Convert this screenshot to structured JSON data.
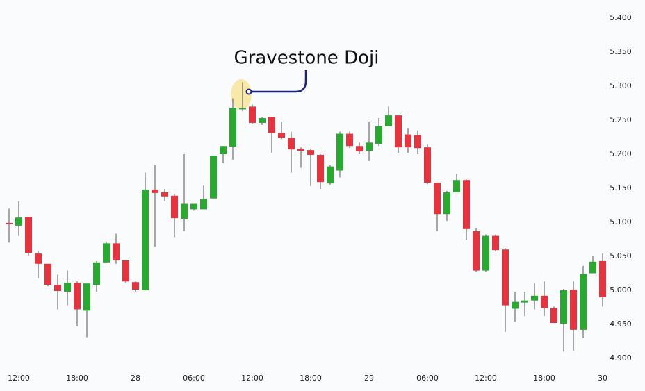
{
  "chart_data": {
    "type": "candlestick",
    "annotation": "Gravestone Doji",
    "categories": [
      null,
      "12:00",
      null,
      null,
      null,
      null,
      null,
      "18:00",
      null,
      null,
      null,
      null,
      null,
      "28",
      null,
      null,
      null,
      null,
      null,
      "06:00",
      null,
      null,
      null,
      null,
      null,
      "12:00",
      null,
      null,
      null,
      null,
      null,
      "18:00",
      null,
      null,
      null,
      null,
      null,
      "29",
      null,
      null,
      null,
      null,
      null,
      "06:00",
      null,
      null,
      null,
      null,
      null,
      "12:00",
      null,
      null,
      null,
      null,
      null,
      "18:00",
      null,
      null,
      null,
      null,
      null,
      "30"
    ],
    "open": [
      5.099,
      5.095,
      5.108,
      5.054,
      5.039,
      5.008,
      4.998,
      5.011,
      4.97,
      5.008,
      5.041,
      5.069,
      5.044,
      5.012,
      5.0,
      5.148,
      5.144,
      5.139,
      5.105,
      5.119,
      5.119,
      5.135,
      5.2,
      5.211,
      5.266,
      5.27,
      5.246,
      5.255,
      5.231,
      5.224,
      5.208,
      5.206,
      5.199,
      5.157,
      5.176,
      5.23,
      5.212,
      5.205,
      5.215,
      5.241,
      5.257,
      5.229,
      5.228,
      5.21,
      5.158,
      5.112,
      5.144,
      5.162,
      5.087,
      5.029,
      5.08,
      5.06,
      4.973,
      4.982,
      4.985,
      4.992,
      4.974,
      4.951,
      5.001,
      4.942,
      5.025,
      5.043
    ],
    "high": [
      5.12,
      5.131,
      5.108,
      5.057,
      5.039,
      5.023,
      5.029,
      5.013,
      5.01,
      5.043,
      5.071,
      5.083,
      5.044,
      5.013,
      5.173,
      5.184,
      5.149,
      5.141,
      5.2,
      5.127,
      5.154,
      5.198,
      5.212,
      5.282,
      5.306,
      5.273,
      5.255,
      5.255,
      5.248,
      5.233,
      5.21,
      5.208,
      5.2,
      5.184,
      5.233,
      5.233,
      5.217,
      5.248,
      5.253,
      5.27,
      5.257,
      5.238,
      5.235,
      5.214,
      5.158,
      5.146,
      5.171,
      5.163,
      5.092,
      5.082,
      5.082,
      5.062,
      4.998,
      4.998,
      5.01,
      5.013,
      4.976,
      5.002,
      5.013,
      5.036,
      5.051,
      5.054
    ],
    "low": [
      5.07,
      5.08,
      5.051,
      5.018,
      5.006,
      4.972,
      4.978,
      4.947,
      4.931,
      4.998,
      5.041,
      5.039,
      5.011,
      4.998,
      5.0,
      5.064,
      5.131,
      5.078,
      5.087,
      5.117,
      5.119,
      5.135,
      5.187,
      5.192,
      5.263,
      5.245,
      5.243,
      5.202,
      5.222,
      5.173,
      5.18,
      5.153,
      5.149,
      5.155,
      5.166,
      5.209,
      5.2,
      5.19,
      5.212,
      5.241,
      5.202,
      5.202,
      5.2,
      5.156,
      5.087,
      5.102,
      5.144,
      5.074,
      5.027,
      5.027,
      5.057,
      4.939,
      4.954,
      4.962,
      4.972,
      4.962,
      4.952,
      4.91,
      4.911,
      4.93,
      5.025,
      4.976
    ],
    "close": [
      5.097,
      5.107,
      5.055,
      5.039,
      5.008,
      4.999,
      5.011,
      4.972,
      5.01,
      5.041,
      5.069,
      5.044,
      5.013,
      5.001,
      5.148,
      5.143,
      5.138,
      5.106,
      5.127,
      5.127,
      5.134,
      5.198,
      5.212,
      5.268,
      5.268,
      5.246,
      5.253,
      5.231,
      5.224,
      5.207,
      5.205,
      5.199,
      5.159,
      5.182,
      5.23,
      5.212,
      5.204,
      5.217,
      5.241,
      5.257,
      5.21,
      5.21,
      5.209,
      5.158,
      5.112,
      5.144,
      5.162,
      5.09,
      5.029,
      5.08,
      5.059,
      4.978,
      4.983,
      4.985,
      4.992,
      4.974,
      4.952,
      5.0,
      4.942,
      5.024,
      5.042,
      4.99
    ],
    "up_color": "#2aa832",
    "down_color": "#e3343f",
    "ylim": [
      4.9,
      5.4
    ],
    "yticks": [
      {
        "value": 4.9,
        "label": "4.900"
      },
      {
        "value": 4.95,
        "label": "4.950"
      },
      {
        "value": 5.0,
        "label": "5.000"
      },
      {
        "value": 5.05,
        "label": "5.050"
      },
      {
        "value": 5.1,
        "label": "5.100"
      },
      {
        "value": 5.15,
        "label": "5.150"
      },
      {
        "value": 5.2,
        "label": "5.200"
      },
      {
        "value": 5.25,
        "label": "5.250"
      },
      {
        "value": 5.3,
        "label": "5.300"
      },
      {
        "value": 5.35,
        "label": "5.350"
      },
      {
        "value": 5.4,
        "label": "5.400"
      }
    ],
    "grid": false
  }
}
